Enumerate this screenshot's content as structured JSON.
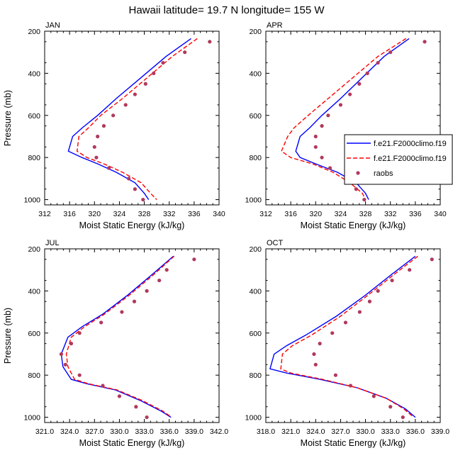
{
  "figure_title": "Hawaii  latitude= 19.7 N longitude= 155 W",
  "chart_data": [
    {
      "type": "line",
      "panel_label": "JAN",
      "xlabel": "Moist Static Energy (kJ/kg)",
      "ylabel": "Pressure (mb)",
      "xlim": [
        312,
        340
      ],
      "ylim": [
        1025,
        200
      ],
      "xticks": [
        "312",
        "316",
        "320",
        "324",
        "328",
        "332",
        "336",
        "340"
      ],
      "xtick_values": [
        312,
        316,
        320,
        324,
        328,
        332,
        336,
        340
      ],
      "yticks": [
        "200",
        "400",
        "600",
        "800",
        "1000"
      ],
      "ytick_values": [
        200,
        400,
        600,
        800,
        1000
      ],
      "legend": null,
      "series": [
        {
          "name": "f.e21.F2000climo.f19",
          "style": "solid",
          "color": "#0000ff",
          "x": [
            335.5,
            331.5,
            327.5,
            323.5,
            320.5,
            318.0,
            316.5,
            315.8,
            318.0,
            320.5,
            323.5,
            326.5,
            328.0,
            328.7
          ],
          "y": [
            235,
            320,
            420,
            520,
            600,
            660,
            700,
            770,
            800,
            830,
            870,
            920,
            970,
            1000
          ]
        },
        {
          "name": "f.e21.F2000climo.f19",
          "style": "dashed",
          "color": "#ff0000",
          "x": [
            336.5,
            332.5,
            328.5,
            324.5,
            321.0,
            319.0,
            317.5,
            317.2,
            318.8,
            321.5,
            324.5,
            327.5,
            329.0,
            330.0
          ],
          "y": [
            235,
            320,
            420,
            520,
            600,
            660,
            700,
            770,
            800,
            830,
            870,
            920,
            970,
            1000
          ]
        },
        {
          "name": "raobs",
          "style": "markers",
          "color": "#b03a5b",
          "x": [
            338.5,
            334.5,
            331.0,
            329.5,
            328.2,
            326.5,
            325.0,
            323.0,
            321.5,
            320.5,
            320.0,
            320.3,
            322.3,
            325.5,
            326.5,
            327.8
          ],
          "y": [
            250,
            300,
            350,
            400,
            450,
            500,
            550,
            600,
            650,
            700,
            750,
            800,
            850,
            900,
            950,
            1000
          ]
        }
      ]
    },
    {
      "type": "line",
      "panel_label": "APR",
      "xlabel": "Moist Static Energy (kJ/kg)",
      "ylabel": "",
      "xlim": [
        312,
        340
      ],
      "ylim": [
        1025,
        200
      ],
      "xticks": [
        "312",
        "316",
        "320",
        "324",
        "328",
        "332",
        "336",
        "340"
      ],
      "xtick_values": [
        312,
        316,
        320,
        324,
        328,
        332,
        336,
        340
      ],
      "yticks": [
        "200",
        "400",
        "600",
        "800",
        "1000"
      ],
      "ytick_values": [
        200,
        400,
        600,
        800,
        1000
      ],
      "legend": [
        {
          "label": "f.e21.F2000climo.f19",
          "style": "solid",
          "color": "#0000ff"
        },
        {
          "label": "f.e21.F2000climo.f19",
          "style": "dashed",
          "color": "#ff0000"
        },
        {
          "label": "raobs",
          "style": "markers",
          "color": "#b03a5b"
        }
      ],
      "series": [
        {
          "name": "f.e21.F2000climo.f19",
          "style": "solid",
          "color": "#0000ff",
          "x": [
            335.0,
            331.0,
            327.5,
            324.0,
            321.0,
            319.0,
            317.5,
            316.8,
            317.5,
            320.0,
            323.5,
            326.5,
            328.0,
            328.5
          ],
          "y": [
            235,
            320,
            420,
            520,
            600,
            660,
            700,
            770,
            800,
            830,
            870,
            920,
            970,
            1000
          ]
        },
        {
          "name": "f.e21.F2000climo.f19",
          "style": "dashed",
          "color": "#ff0000",
          "x": [
            334.5,
            330.0,
            326.0,
            322.0,
            318.8,
            316.5,
            315.5,
            314.5,
            316.0,
            319.5,
            322.8,
            325.5,
            327.5,
            328.0
          ],
          "y": [
            235,
            320,
            420,
            520,
            600,
            660,
            700,
            770,
            800,
            830,
            870,
            920,
            970,
            1000
          ]
        },
        {
          "name": "raobs",
          "style": "markers",
          "color": "#b03a5b",
          "x": [
            337.5,
            332.0,
            330.0,
            328.3,
            327.0,
            325.5,
            324.0,
            322.0,
            321.0,
            320.0,
            320.0,
            321.0,
            322.3,
            325.0,
            326.5,
            327.8
          ],
          "y": [
            250,
            300,
            350,
            400,
            450,
            500,
            550,
            600,
            650,
            700,
            750,
            800,
            850,
            900,
            950,
            1000
          ]
        }
      ]
    },
    {
      "type": "line",
      "panel_label": "JUL",
      "xlabel": "Moist Static Energy (kJ/kg)",
      "ylabel": "Pressure (mb)",
      "xlim": [
        321,
        342
      ],
      "ylim": [
        1025,
        200
      ],
      "xticks": [
        "321.0",
        "324.0",
        "327.0",
        "330.0",
        "333.0",
        "336.0",
        "339.0",
        "342.0"
      ],
      "xtick_values": [
        321,
        324,
        327,
        330,
        333,
        336,
        339,
        342
      ],
      "yticks": [
        "200",
        "400",
        "600",
        "800",
        "1000"
      ],
      "ytick_values": [
        200,
        400,
        600,
        800,
        1000
      ],
      "legend": null,
      "series": [
        {
          "name": "f.e21.F2000climo.f19",
          "style": "solid",
          "color": "#0000ff",
          "x": [
            336.5,
            334.0,
            331.0,
            328.0,
            325.5,
            323.8,
            323.0,
            323.2,
            324.2,
            326.0,
            329.5,
            332.5,
            335.0,
            336.2
          ],
          "y": [
            235,
            320,
            420,
            510,
            570,
            620,
            700,
            760,
            820,
            840,
            870,
            920,
            970,
            1000
          ]
        },
        {
          "name": "f.e21.F2000climo.f19",
          "style": "dashed",
          "color": "#ff0000",
          "x": [
            336.6,
            334.2,
            331.2,
            328.2,
            325.8,
            324.2,
            323.6,
            323.8,
            324.6,
            326.2,
            329.7,
            332.7,
            335.2,
            336.3
          ],
          "y": [
            235,
            320,
            420,
            510,
            570,
            620,
            700,
            760,
            820,
            840,
            870,
            920,
            970,
            1000
          ]
        },
        {
          "name": "raobs",
          "style": "markers",
          "color": "#b03a5b",
          "x": [
            339.0,
            335.7,
            334.8,
            333.3,
            331.8,
            330.3,
            327.8,
            325.2,
            324.2,
            323.0,
            323.5,
            325.2,
            328.0,
            330.0,
            332.0,
            333.3
          ],
          "y": [
            250,
            300,
            350,
            400,
            450,
            500,
            550,
            600,
            650,
            700,
            750,
            800,
            850,
            900,
            950,
            1000
          ]
        }
      ]
    },
    {
      "type": "line",
      "panel_label": "OCT",
      "xlabel": "Moist Static Energy (kJ/kg)",
      "ylabel": "",
      "xlim": [
        318,
        339
      ],
      "ylim": [
        1025,
        200
      ],
      "xticks": [
        "318.0",
        "321.0",
        "324.0",
        "327.0",
        "330.0",
        "333.0",
        "336.0",
        "339.0"
      ],
      "xtick_values": [
        318,
        321,
        324,
        327,
        330,
        333,
        336,
        339
      ],
      "yticks": [
        "200",
        "400",
        "600",
        "800",
        "1000"
      ],
      "ytick_values": [
        200,
        400,
        600,
        800,
        1000
      ],
      "legend": null,
      "series": [
        {
          "name": "f.e21.F2000climo.f19",
          "style": "solid",
          "color": "#0000ff",
          "x": [
            336.0,
            333.2,
            330.0,
            326.5,
            322.8,
            320.5,
            319.0,
            318.5,
            320.5,
            324.5,
            329.0,
            332.5,
            334.8,
            336.0
          ],
          "y": [
            235,
            320,
            420,
            520,
            610,
            660,
            700,
            770,
            790,
            820,
            860,
            910,
            960,
            1000
          ]
        },
        {
          "name": "f.e21.F2000climo.f19",
          "style": "dashed",
          "color": "#ff0000",
          "x": [
            336.3,
            333.5,
            330.3,
            327.0,
            323.5,
            321.2,
            320.0,
            319.8,
            321.0,
            324.8,
            329.0,
            332.5,
            334.6,
            335.8
          ],
          "y": [
            235,
            320,
            420,
            520,
            610,
            660,
            700,
            770,
            790,
            820,
            860,
            910,
            960,
            1000
          ]
        },
        {
          "name": "raobs",
          "style": "markers",
          "color": "#b03a5b",
          "x": [
            338.0,
            335.3,
            333.2,
            331.5,
            330.5,
            329.3,
            327.6,
            326.0,
            324.5,
            323.8,
            324.0,
            326.4,
            328.2,
            331.0,
            333.0,
            334.5
          ],
          "y": [
            250,
            300,
            350,
            400,
            450,
            500,
            550,
            600,
            650,
            700,
            750,
            800,
            850,
            900,
            950,
            1000
          ]
        }
      ]
    }
  ]
}
